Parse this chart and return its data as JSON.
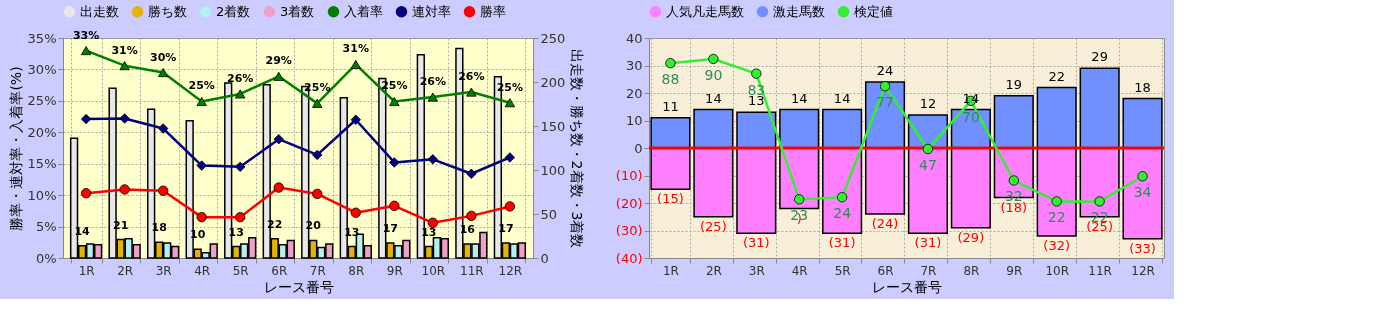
{
  "chart_data": [
    {
      "type": "bar",
      "categories": [
        "1R",
        "2R",
        "3R",
        "4R",
        "5R",
        "6R",
        "7R",
        "8R",
        "9R",
        "10R",
        "11R",
        "12R"
      ],
      "xlabel": "レース番号",
      "ylabel": "勝率・連対率・入着率(%)",
      "y2label": "出走数・勝ち数・2着数・3着数",
      "ylim": [
        0,
        35
      ],
      "yticks": [
        {
          "value": 0,
          "label": "0%"
        },
        {
          "value": 5,
          "label": "5%"
        },
        {
          "value": 10,
          "label": "10%"
        },
        {
          "value": 15,
          "label": "15%"
        },
        {
          "value": 20,
          "label": "20%"
        },
        {
          "value": 25,
          "label": "25%"
        },
        {
          "value": 30,
          "label": "30%"
        },
        {
          "value": 35,
          "label": "35%"
        }
      ],
      "y2lim": [
        0,
        250
      ],
      "y2ticks": [
        0,
        50,
        100,
        150,
        200,
        250
      ],
      "grid": true,
      "legend": "top",
      "series": [
        {
          "name": "出走数",
          "color": "#e8e8e8",
          "axis": "y2",
          "values": [
            136,
            193,
            169,
            156,
            199,
            197,
            195,
            182,
            204,
            231,
            238,
            206
          ]
        },
        {
          "name": "勝ち数",
          "color": "#e6b400",
          "axis": "y2",
          "values": [
            14,
            21,
            18,
            10,
            13,
            22,
            20,
            13,
            17,
            13,
            16,
            17
          ],
          "value_labels": [
            "14",
            "21",
            "18",
            "10",
            "13",
            "22",
            "20",
            "13",
            "17",
            "13",
            "16",
            "17"
          ]
        },
        {
          "name": "2着数",
          "color": "#b4f0f0",
          "axis": "y2",
          "values": [
            16,
            22,
            17,
            6,
            16,
            15,
            12,
            27,
            14,
            23,
            16,
            16
          ]
        },
        {
          "name": "3着数",
          "color": "#f0a0c8",
          "axis": "y2",
          "values": [
            15,
            15,
            13,
            16,
            23,
            20,
            16,
            14,
            20,
            22,
            29,
            17
          ]
        },
        {
          "name": "入着率",
          "type": "line",
          "color": "#008000",
          "marker": "triangle",
          "values": [
            33.0,
            30.6,
            29.5,
            24.9,
            26.1,
            28.9,
            24.6,
            30.8,
            24.9,
            25.6,
            26.4,
            24.7
          ],
          "value_labels": [
            "33%",
            "31%",
            "30%",
            "25%",
            "26%",
            "29%",
            "25%",
            "31%",
            "25%",
            "26%",
            "26%",
            "25%"
          ]
        },
        {
          "name": "連対率",
          "type": "line",
          "color": "#000080",
          "marker": "diamond",
          "values": [
            22.1,
            22.2,
            20.6,
            14.7,
            14.5,
            18.9,
            16.4,
            22.0,
            15.2,
            15.7,
            13.4,
            16.0
          ]
        },
        {
          "name": "勝率",
          "type": "line",
          "color": "#ff0000",
          "marker": "circle",
          "values": [
            10.3,
            10.9,
            10.7,
            6.5,
            6.5,
            11.2,
            10.2,
            7.2,
            8.3,
            5.6,
            6.7,
            8.2
          ]
        }
      ]
    },
    {
      "type": "bar",
      "categories": [
        "1R",
        "2R",
        "3R",
        "4R",
        "5R",
        "6R",
        "7R",
        "8R",
        "9R",
        "10R",
        "11R",
        "12R"
      ],
      "xlabel": "レース番号",
      "ylim": [
        -40,
        40
      ],
      "yticks": [
        {
          "value": -40,
          "label": "(40)"
        },
        {
          "value": -30,
          "label": "(30)"
        },
        {
          "value": -20,
          "label": "(20)"
        },
        {
          "value": -10,
          "label": "(10)"
        },
        0,
        10,
        20,
        30,
        40
      ],
      "y2lim": [
        -5,
        100
      ],
      "grid": true,
      "legend": "top",
      "stacked": true,
      "ref_lines": [
        {
          "axis": "y",
          "value": 0,
          "color": "#ff0000"
        }
      ],
      "series": [
        {
          "name": "人気凡走馬数",
          "color": "#ff80ff",
          "values": [
            -15,
            -25,
            -31,
            -22,
            -31,
            -24,
            -31,
            -29,
            -18,
            -32,
            -25,
            -33
          ],
          "value_labels": [
            "(15)",
            "(25)",
            "(31)",
            ")",
            "(31)",
            "(24)",
            "(31)",
            "(29)",
            "(18)",
            "(32)",
            "(25)",
            "(33)"
          ]
        },
        {
          "name": "激走馬数",
          "color": "#7090ff",
          "values": [
            11,
            14,
            13,
            14,
            14,
            24,
            12,
            14,
            19,
            22,
            29,
            18
          ],
          "value_labels": [
            "11",
            "14",
            "13",
            "14",
            "14",
            "24",
            "12",
            "14",
            "19",
            "22",
            "29",
            "18"
          ]
        },
        {
          "name": "検定値",
          "type": "line",
          "axis": "y2",
          "color": "#33ee33",
          "marker": "circle",
          "values": [
            88,
            90,
            83,
            23,
            24,
            77,
            47,
            70,
            32,
            22,
            22,
            34
          ],
          "value_labels": [
            "88",
            "90",
            "83",
            "23",
            "24",
            "77",
            "47",
            "70",
            "32",
            "22",
            "22",
            "34"
          ]
        }
      ]
    }
  ]
}
